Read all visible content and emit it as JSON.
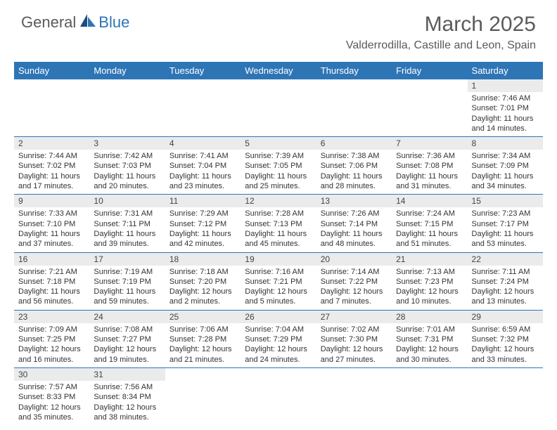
{
  "logo": {
    "general": "General",
    "blue": "Blue"
  },
  "title": "March 2025",
  "location": "Valderrodilla, Castille and Leon, Spain",
  "header_color": "#2e75b6",
  "daynum_bg": "#ebebeb",
  "weekdays": [
    "Sunday",
    "Monday",
    "Tuesday",
    "Wednesday",
    "Thursday",
    "Friday",
    "Saturday"
  ],
  "weeks": [
    [
      null,
      null,
      null,
      null,
      null,
      null,
      {
        "n": "1",
        "sr": "7:46 AM",
        "ss": "7:01 PM",
        "dl": "11 hours and 14 minutes."
      }
    ],
    [
      {
        "n": "2",
        "sr": "7:44 AM",
        "ss": "7:02 PM",
        "dl": "11 hours and 17 minutes."
      },
      {
        "n": "3",
        "sr": "7:42 AM",
        "ss": "7:03 PM",
        "dl": "11 hours and 20 minutes."
      },
      {
        "n": "4",
        "sr": "7:41 AM",
        "ss": "7:04 PM",
        "dl": "11 hours and 23 minutes."
      },
      {
        "n": "5",
        "sr": "7:39 AM",
        "ss": "7:05 PM",
        "dl": "11 hours and 25 minutes."
      },
      {
        "n": "6",
        "sr": "7:38 AM",
        "ss": "7:06 PM",
        "dl": "11 hours and 28 minutes."
      },
      {
        "n": "7",
        "sr": "7:36 AM",
        "ss": "7:08 PM",
        "dl": "11 hours and 31 minutes."
      },
      {
        "n": "8",
        "sr": "7:34 AM",
        "ss": "7:09 PM",
        "dl": "11 hours and 34 minutes."
      }
    ],
    [
      {
        "n": "9",
        "sr": "7:33 AM",
        "ss": "7:10 PM",
        "dl": "11 hours and 37 minutes."
      },
      {
        "n": "10",
        "sr": "7:31 AM",
        "ss": "7:11 PM",
        "dl": "11 hours and 39 minutes."
      },
      {
        "n": "11",
        "sr": "7:29 AM",
        "ss": "7:12 PM",
        "dl": "11 hours and 42 minutes."
      },
      {
        "n": "12",
        "sr": "7:28 AM",
        "ss": "7:13 PM",
        "dl": "11 hours and 45 minutes."
      },
      {
        "n": "13",
        "sr": "7:26 AM",
        "ss": "7:14 PM",
        "dl": "11 hours and 48 minutes."
      },
      {
        "n": "14",
        "sr": "7:24 AM",
        "ss": "7:15 PM",
        "dl": "11 hours and 51 minutes."
      },
      {
        "n": "15",
        "sr": "7:23 AM",
        "ss": "7:17 PM",
        "dl": "11 hours and 53 minutes."
      }
    ],
    [
      {
        "n": "16",
        "sr": "7:21 AM",
        "ss": "7:18 PM",
        "dl": "11 hours and 56 minutes."
      },
      {
        "n": "17",
        "sr": "7:19 AM",
        "ss": "7:19 PM",
        "dl": "11 hours and 59 minutes."
      },
      {
        "n": "18",
        "sr": "7:18 AM",
        "ss": "7:20 PM",
        "dl": "12 hours and 2 minutes."
      },
      {
        "n": "19",
        "sr": "7:16 AM",
        "ss": "7:21 PM",
        "dl": "12 hours and 5 minutes."
      },
      {
        "n": "20",
        "sr": "7:14 AM",
        "ss": "7:22 PM",
        "dl": "12 hours and 7 minutes."
      },
      {
        "n": "21",
        "sr": "7:13 AM",
        "ss": "7:23 PM",
        "dl": "12 hours and 10 minutes."
      },
      {
        "n": "22",
        "sr": "7:11 AM",
        "ss": "7:24 PM",
        "dl": "12 hours and 13 minutes."
      }
    ],
    [
      {
        "n": "23",
        "sr": "7:09 AM",
        "ss": "7:25 PM",
        "dl": "12 hours and 16 minutes."
      },
      {
        "n": "24",
        "sr": "7:08 AM",
        "ss": "7:27 PM",
        "dl": "12 hours and 19 minutes."
      },
      {
        "n": "25",
        "sr": "7:06 AM",
        "ss": "7:28 PM",
        "dl": "12 hours and 21 minutes."
      },
      {
        "n": "26",
        "sr": "7:04 AM",
        "ss": "7:29 PM",
        "dl": "12 hours and 24 minutes."
      },
      {
        "n": "27",
        "sr": "7:02 AM",
        "ss": "7:30 PM",
        "dl": "12 hours and 27 minutes."
      },
      {
        "n": "28",
        "sr": "7:01 AM",
        "ss": "7:31 PM",
        "dl": "12 hours and 30 minutes."
      },
      {
        "n": "29",
        "sr": "6:59 AM",
        "ss": "7:32 PM",
        "dl": "12 hours and 33 minutes."
      }
    ],
    [
      {
        "n": "30",
        "sr": "7:57 AM",
        "ss": "8:33 PM",
        "dl": "12 hours and 35 minutes."
      },
      {
        "n": "31",
        "sr": "7:56 AM",
        "ss": "8:34 PM",
        "dl": "12 hours and 38 minutes."
      },
      null,
      null,
      null,
      null,
      null
    ]
  ],
  "labels": {
    "sunrise": "Sunrise: ",
    "sunset": "Sunset: ",
    "daylight": "Daylight: "
  }
}
